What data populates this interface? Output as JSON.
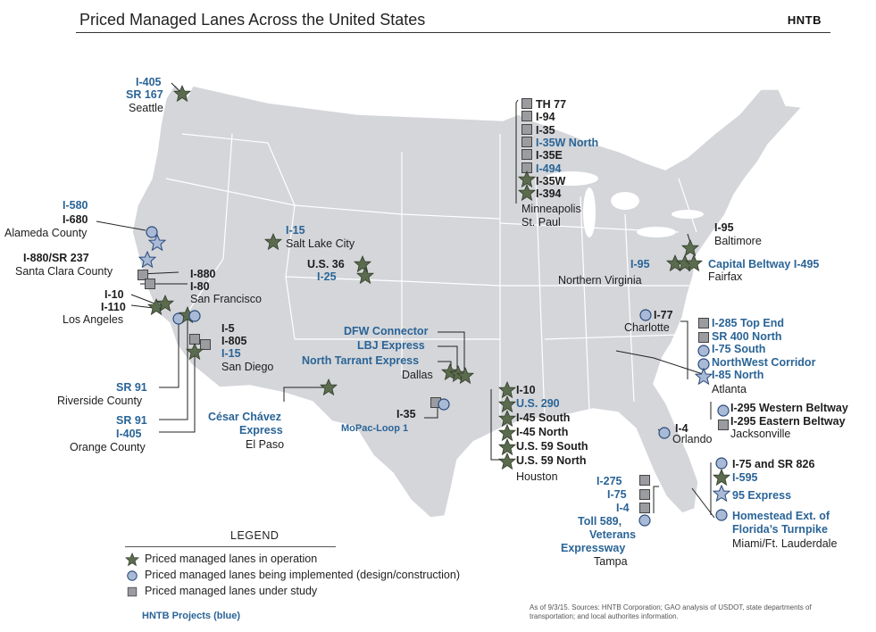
{
  "title": "Priced Managed Lanes Across the United States",
  "logo": "HNTB",
  "colors": {
    "operation": "#5b6b4e",
    "implemented": "#a9bad6",
    "study": "#9a9ca0",
    "land": "#d4d6da",
    "hntb_blue": "#2a6496"
  },
  "labels": {
    "seattle": [
      "I-405",
      "SR 167",
      "Seattle"
    ],
    "minneapolis": [
      "TH 77",
      "I-94",
      "I-35",
      "I-35W North",
      "I-35E",
      "I-494",
      "I-35W",
      "I-394",
      "Minneapolis",
      "St. Paul"
    ],
    "bay_area": [
      "I-580",
      "I-680",
      "Alameda County",
      "I-880/SR 237",
      "Santa Clara County",
      "I-880",
      "I-80",
      "San Francisco"
    ],
    "salt_lake": [
      "I-15",
      "Salt Lake City"
    ],
    "denver": [
      "U.S. 36",
      "I-25"
    ],
    "la": [
      "I-10",
      "I-110",
      "Los Angeles"
    ],
    "san_diego": [
      "I-5",
      "I-805",
      "I-15",
      "San Diego"
    ],
    "riverside": [
      "SR 91",
      "Riverside County"
    ],
    "orange": [
      "SR 91",
      "I-405",
      "Orange County"
    ],
    "el_paso": [
      "César Chávez",
      "Express",
      "El Paso"
    ],
    "dallas": [
      "DFW Connector",
      "LBJ Express",
      "North Tarrant Express",
      "Dallas"
    ],
    "austin": [
      "I-35",
      "MoPac-Loop 1"
    ],
    "houston": [
      "I-10",
      "U.S. 290",
      "I-45 South",
      "I-45 North",
      "U.S. 59 South",
      "U.S. 59 North",
      "Houston"
    ],
    "baltimore": [
      "I-95",
      "Baltimore"
    ],
    "virginia": [
      "I-95",
      "Capital Beltway I-495",
      "Northern Virginia",
      "Fairfax"
    ],
    "charlotte": [
      "I-77",
      "Charlotte"
    ],
    "atlanta": [
      "I-285 Top End",
      "SR 400 North",
      "I-75 South",
      "NorthWest Corridor",
      "I-85 North",
      "Atlanta"
    ],
    "jacksonville": [
      "I-295 Western Beltway",
      "I-295 Eastern Beltway",
      "Jacksonville"
    ],
    "orlando": [
      "I-4",
      "Orlando"
    ],
    "tampa": [
      "I-275",
      "I-75",
      "I-4",
      "Toll 589,",
      "Veterans",
      "Expressway",
      "Tampa"
    ],
    "miami": [
      "I-75 and SR 826",
      "I-595",
      "95 Express",
      "Homestead Ext. of",
      "Florida’s Turnpike",
      "Miami/Ft. Lauderdale"
    ]
  },
  "legend": {
    "title": "LEGEND",
    "items": [
      {
        "icon": "star",
        "label": "Priced managed lanes in operation"
      },
      {
        "icon": "circle",
        "label": "Priced managed lanes being implemented (design/construction)"
      },
      {
        "icon": "square",
        "label": "Priced managed lanes under study"
      }
    ],
    "note": "HNTB Projects (blue)"
  },
  "sources": "As of 9/3/15. Sources: HNTB Corporation; GAO analysis of USDOT, state departments of transportation; and local authorites information."
}
